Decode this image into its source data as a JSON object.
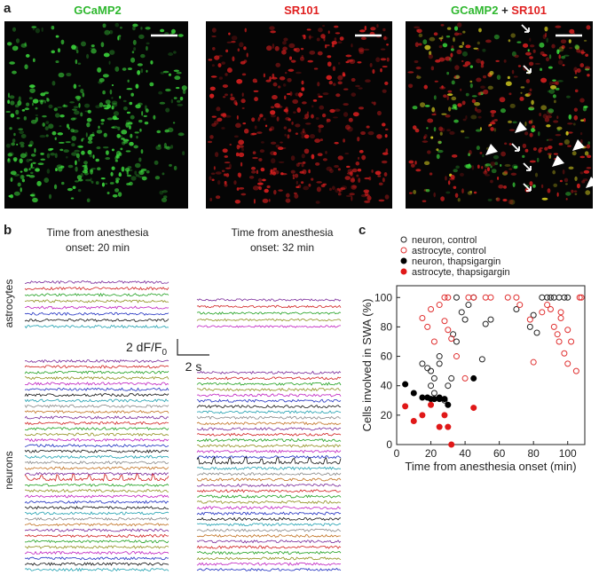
{
  "panel_a": {
    "label": "a",
    "title_gcamp": "GCaMP2",
    "title_sr": "SR101",
    "merge_plus": "+"
  },
  "panel_b": {
    "label": "b",
    "col_titles": [
      [
        "Time from anesthesia",
        "onset: 20 min"
      ],
      [
        "Time from anesthesia",
        "onset: 32 min"
      ]
    ],
    "row_labels": [
      "astrocytes",
      "neurons"
    ],
    "scale_y": {
      "main": "2 dF/F",
      "sub": "0"
    },
    "scale_x": "2 s"
  },
  "panel_c": {
    "label": "c"
  },
  "chart_data": {
    "type": "scatter",
    "xlabel": "Time from anesthesia onset (min)",
    "ylabel": "Cells involved in SWA (%)",
    "xlim": [
      0,
      110
    ],
    "xticks": [
      0,
      20,
      40,
      60,
      80,
      100
    ],
    "ylim": [
      0,
      108
    ],
    "yticks": [
      0,
      20,
      40,
      60,
      80,
      100
    ],
    "series": [
      {
        "name": "neuron, control",
        "color": "#222222",
        "filled": false,
        "x": [
          15,
          18,
          20,
          22,
          25,
          25,
          20,
          22,
          28,
          30,
          32,
          33,
          35,
          38,
          40,
          42,
          35,
          45,
          50,
          52,
          55,
          70,
          78,
          80,
          85,
          88,
          90,
          92,
          95,
          98,
          100,
          82
        ],
        "values": [
          55,
          52,
          50,
          45,
          60,
          55,
          40,
          35,
          30,
          40,
          45,
          75,
          70,
          90,
          85,
          95,
          100,
          100,
          58,
          82,
          85,
          92,
          80,
          88,
          100,
          100,
          100,
          100,
          100,
          100,
          100,
          76
        ]
      },
      {
        "name": "astrocyte, control",
        "color": "#e03030",
        "filled": false,
        "x": [
          15,
          18,
          20,
          22,
          25,
          28,
          30,
          28,
          30,
          32,
          35,
          40,
          42,
          45,
          52,
          55,
          65,
          70,
          72,
          78,
          80,
          85,
          88,
          90,
          92,
          94,
          95,
          96,
          98,
          100,
          102,
          105,
          107,
          108,
          100,
          96
        ],
        "values": [
          86,
          80,
          92,
          70,
          95,
          100,
          100,
          84,
          78,
          72,
          60,
          45,
          100,
          100,
          100,
          100,
          100,
          100,
          95,
          85,
          56,
          90,
          95,
          92,
          80,
          75,
          70,
          86,
          62,
          55,
          70,
          50,
          100,
          100,
          78,
          90
        ]
      },
      {
        "name": "neuron, thapsigargin",
        "color": "#000000",
        "filled": true,
        "x": [
          5,
          10,
          15,
          18,
          20,
          22,
          25,
          28,
          30,
          45,
          25
        ],
        "values": [
          41,
          35,
          32,
          32,
          31,
          31,
          31,
          31,
          27,
          45,
          32
        ]
      },
      {
        "name": "astrocyte, thapsigargin",
        "color": "#e01818",
        "filled": true,
        "x": [
          5,
          10,
          15,
          20,
          25,
          28,
          30,
          32,
          45
        ],
        "values": [
          26,
          16,
          20,
          27,
          12,
          20,
          12,
          0,
          25
        ]
      }
    ]
  }
}
